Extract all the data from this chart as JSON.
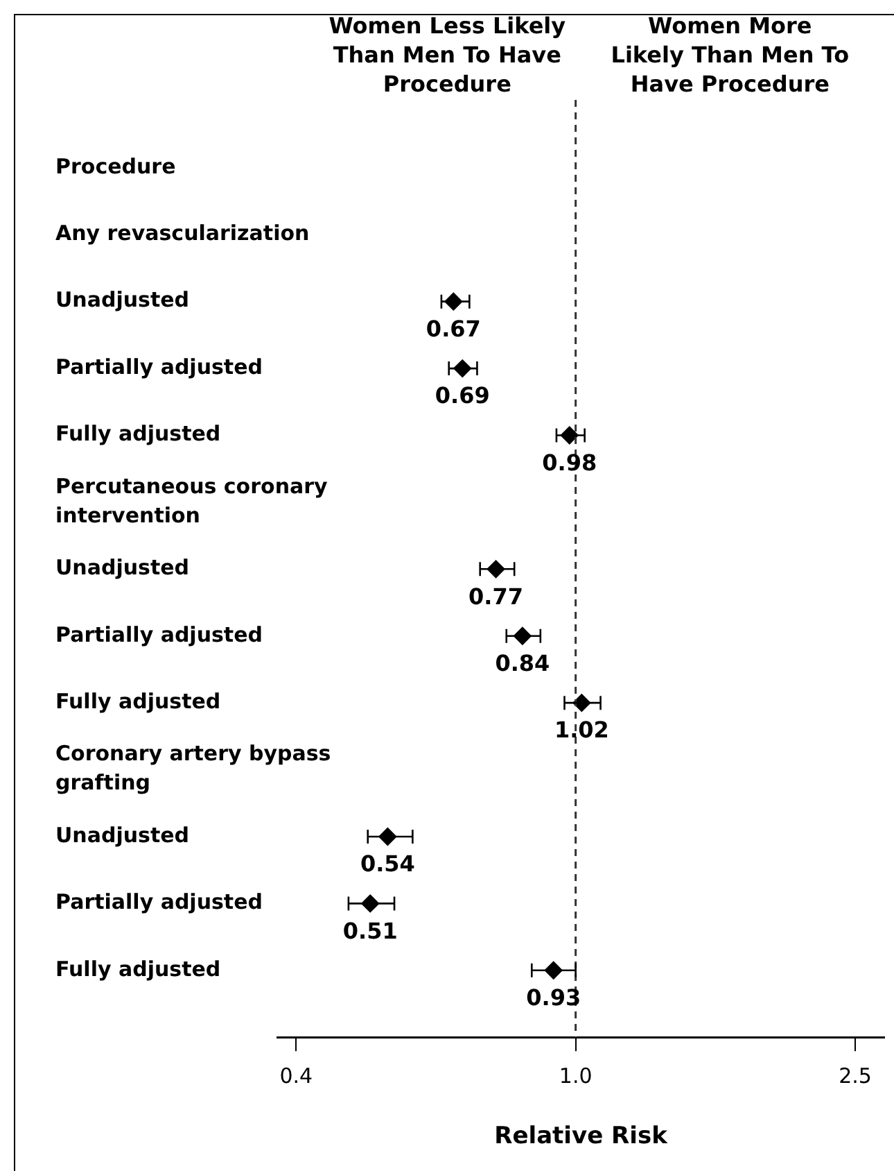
{
  "chart_data": {
    "type": "scatter",
    "orientation": "horizontal",
    "xlabel": "Relative Risk",
    "annotations": [
      "Women Less Likely Than Men To Have Procedure",
      "Women More Likely Than Men To Have Procedure"
    ],
    "categories": [
      "Procedure",
      "Any revascularization",
      "Unadjusted",
      "Partially adjusted",
      "Fully adjusted",
      "Percutaneous coronary intervention",
      "Unadjusted",
      "Partially adjusted",
      "Fully adjusted",
      "Coronary artery bypass grafting",
      "Unadjusted",
      "Partially adjusted",
      "Fully adjusted"
    ],
    "values": [
      null,
      null,
      0.67,
      0.69,
      0.98,
      null,
      0.77,
      0.84,
      1.02,
      null,
      0.54,
      0.51,
      0.93
    ],
    "errors": [
      null,
      null,
      [
        0.644,
        0.706
      ],
      [
        0.66,
        0.724
      ],
      [
        0.939,
        1.03
      ],
      null,
      [
        0.731,
        0.818
      ],
      [
        0.797,
        0.891
      ],
      [
        0.964,
        1.085
      ],
      null,
      [
        0.506,
        0.586
      ],
      [
        0.475,
        0.552
      ],
      [
        0.866,
        1.0
      ]
    ],
    "color": "#000000",
    "marker": "diamond",
    "data_labels": true,
    "log": "x",
    "grid": false,
    "legend": false,
    "xlim": [
      0.376,
      2.75
    ],
    "xticks": [
      0.4,
      {
        "value": 1,
        "label": "1.0"
      },
      2.5
    ],
    "ref_lines": [
      {
        "axis": "x",
        "value": 1,
        "line_style": "dashed",
        "color": "#333333"
      }
    ]
  }
}
